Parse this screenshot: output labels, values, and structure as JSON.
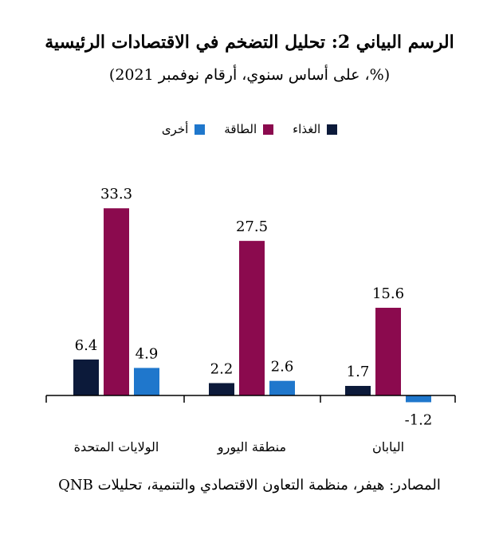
{
  "chart_data": {
    "type": "bar",
    "title": "الرسم البياني 2: تحليل التضخم في الاقتصادات الرئيسية",
    "subtitle": "(%، على أساس سنوي، أرقام نوفمبر 2021)",
    "categories": [
      "الولايات المتحدة",
      "منطقة اليورو",
      "اليابان"
    ],
    "series": [
      {
        "name": "الغذاء",
        "color": "#0c1a3a",
        "values": [
          6.4,
          2.2,
          1.7
        ],
        "labels": [
          "6.4",
          "2.2",
          "1.7"
        ]
      },
      {
        "name": "الطاقة",
        "color": "#8b0a4e",
        "values": [
          33.3,
          27.5,
          15.6
        ],
        "labels": [
          "33.3",
          "27.5",
          "15.6"
        ]
      },
      {
        "name": "أخرى",
        "color": "#1f77cc",
        "values": [
          4.9,
          2.6,
          -1.2
        ],
        "labels": [
          "4.9",
          "2.6",
          "-1.2"
        ]
      }
    ],
    "ylim": [
      -2,
      36
    ],
    "grid": false,
    "legend_position": "top"
  },
  "source": "المصادر: هيفر، منظمة التعاون الاقتصادي والتنمية، تحليلات QNB"
}
